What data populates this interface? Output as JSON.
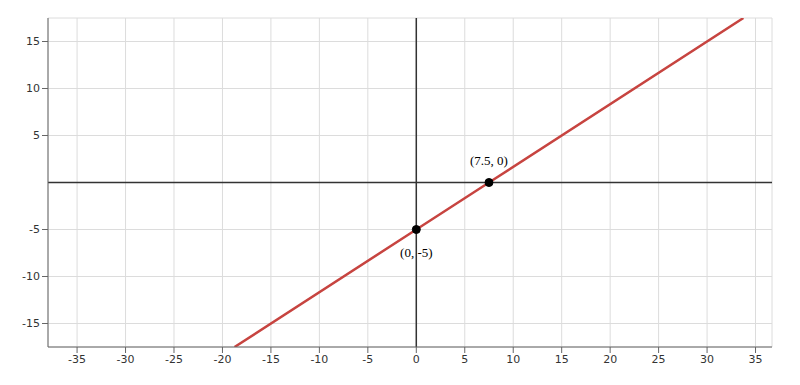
{
  "chart_data": {
    "type": "line",
    "series": [
      {
        "color": "#c74440",
        "x": [
          -18.75,
          0,
          7.5,
          33.75
        ],
        "values": [
          -17.5,
          -5,
          0,
          17.5
        ]
      }
    ],
    "xlim": [
      -38,
      36.7
    ],
    "ylim": [
      -17.5,
      17.5
    ],
    "xticks": [
      -35,
      -30,
      -25,
      -20,
      -15,
      -10,
      -5,
      0,
      5,
      10,
      15,
      20,
      25,
      30,
      35
    ],
    "yticks": [
      -15,
      -10,
      -5,
      5,
      10,
      15
    ],
    "grid": true,
    "annotations": [
      {
        "text": "(7.5, 0)",
        "x": 7.5,
        "y": 0
      },
      {
        "text": "(0, -5)",
        "x": 0,
        "y": -5
      }
    ]
  }
}
